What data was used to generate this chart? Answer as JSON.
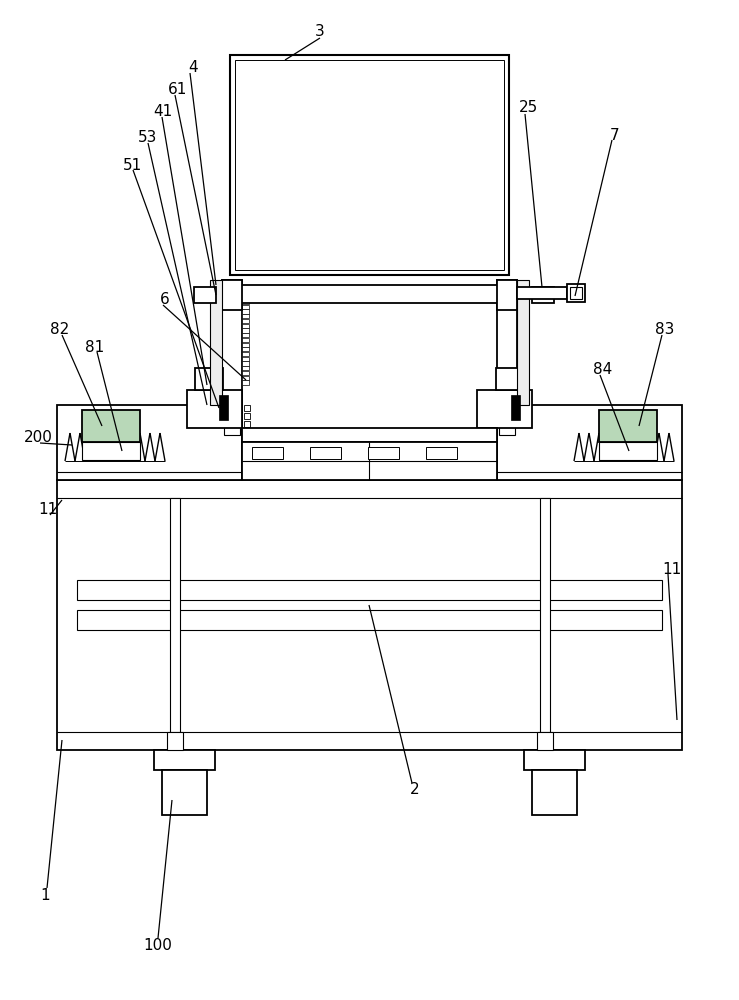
{
  "bg_color": "#ffffff",
  "figsize": [
    7.39,
    10.0
  ],
  "dpi": 100,
  "lw_main": 1.3,
  "lw_thin": 0.8,
  "lw_label": 0.9
}
